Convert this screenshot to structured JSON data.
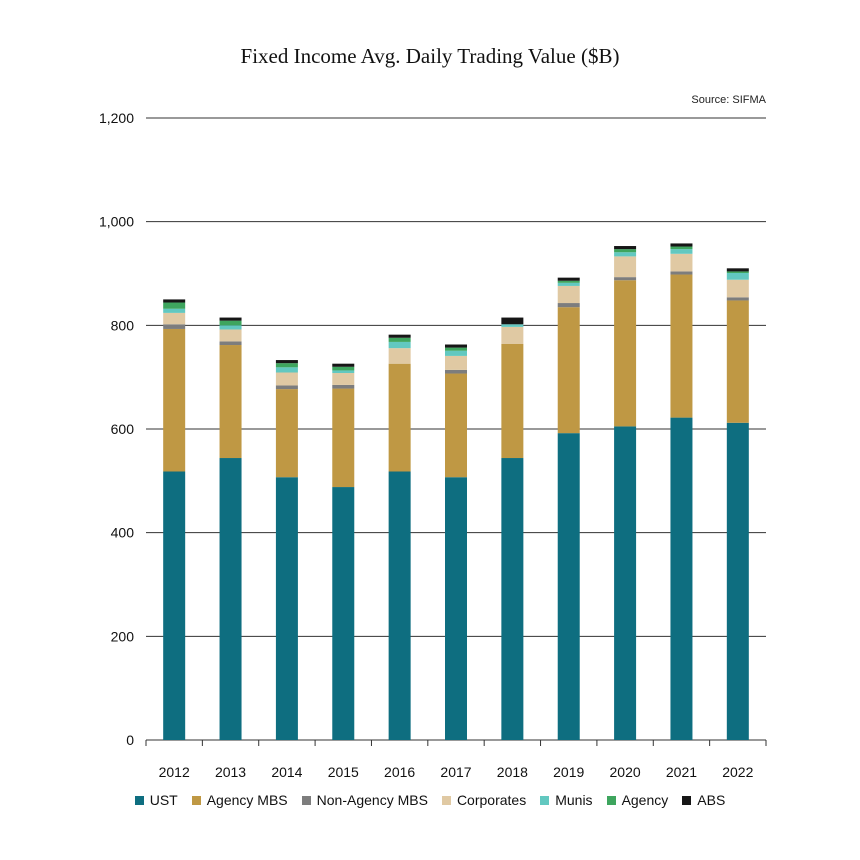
{
  "chart_data": {
    "type": "bar",
    "stacked": true,
    "title": "Fixed Income Avg. Daily Trading Value ($B)",
    "source": "Source: SIFMA",
    "xlabel": "",
    "ylabel": "",
    "ylim": [
      0,
      1200
    ],
    "yticks": [
      0,
      200,
      400,
      600,
      800,
      1000,
      1200
    ],
    "ytick_labels": [
      "0",
      "200",
      "400",
      "600",
      "800",
      "1,000",
      "1,200"
    ],
    "grid": true,
    "legend_position": "bottom",
    "categories": [
      "2012",
      "2013",
      "2014",
      "2015",
      "2016",
      "2017",
      "2018",
      "2019",
      "2020",
      "2021",
      "2022"
    ],
    "series": [
      {
        "name": "UST",
        "color": "#0e6e80",
        "values": [
          518,
          544,
          507,
          488,
          518,
          507,
          544,
          592,
          605,
          622,
          612
        ]
      },
      {
        "name": "Agency MBS",
        "color": "#bf9844",
        "values": [
          275,
          218,
          170,
          190,
          208,
          200,
          220,
          243,
          282,
          276,
          236
        ]
      },
      {
        "name": "Non-Agency MBS",
        "color": "#7d7d7d",
        "values": [
          9,
          7,
          7,
          7,
          0,
          7,
          0,
          8,
          6,
          6,
          6
        ]
      },
      {
        "name": "Corporates",
        "color": "#e0c9a3",
        "values": [
          22,
          23,
          25,
          23,
          30,
          27,
          33,
          33,
          40,
          34,
          34
        ]
      },
      {
        "name": "Munis",
        "color": "#62c8c0",
        "values": [
          8,
          8,
          10,
          5,
          12,
          10,
          5,
          6,
          8,
          9,
          13
        ]
      },
      {
        "name": "Agency",
        "color": "#3ea55e",
        "values": [
          12,
          9,
          8,
          7,
          8,
          6,
          0,
          4,
          6,
          5,
          3
        ]
      },
      {
        "name": "ABS",
        "color": "#161616",
        "values": [
          6,
          6,
          6,
          6,
          6,
          6,
          13,
          6,
          6,
          6,
          6
        ]
      }
    ]
  }
}
